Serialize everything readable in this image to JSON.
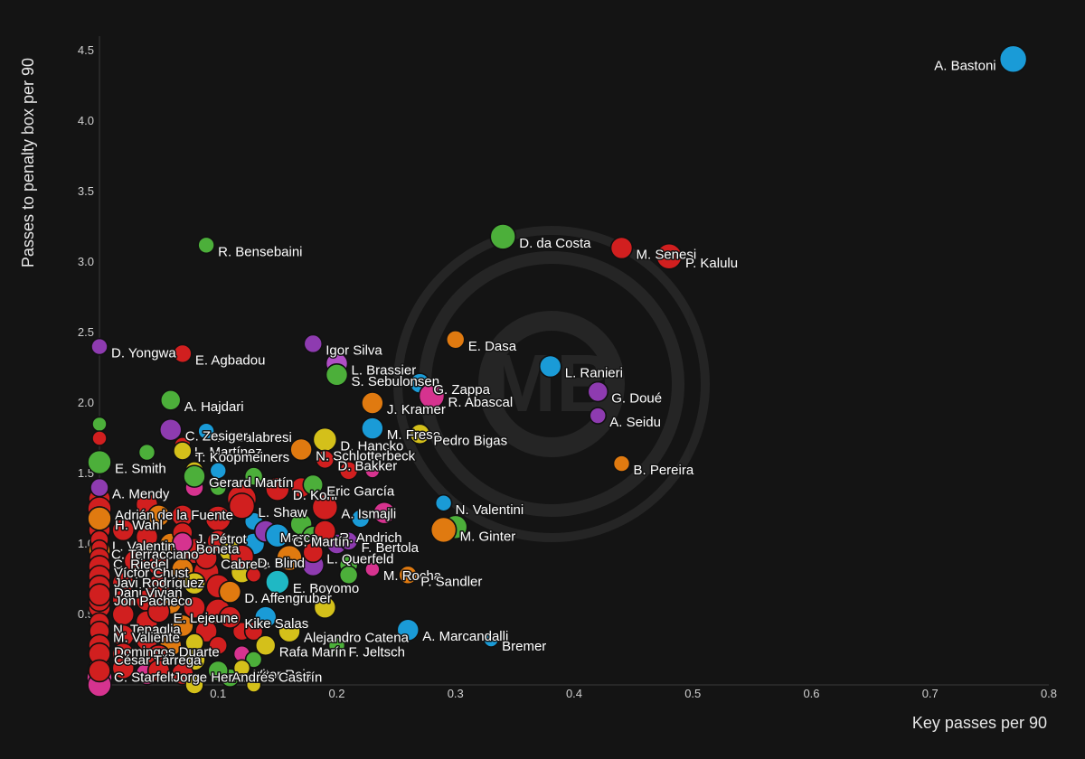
{
  "chart_data": {
    "type": "scatter",
    "xlabel": "Key passes per 90",
    "ylabel": "Passes to penalty box per 90",
    "xlim": [
      0,
      0.8
    ],
    "ylim": [
      0,
      4.5
    ],
    "x_ticks": [
      "0.1",
      "0.2",
      "0.3",
      "0.4",
      "0.5",
      "0.6",
      "0.7",
      "0.8"
    ],
    "y_ticks": [
      "0.5",
      "1.0",
      "1.5",
      "2.0",
      "2.5",
      "3.0",
      "3.5",
      "4.0",
      "4.5"
    ],
    "watermark": "MB",
    "grid": false,
    "labeled_points": [
      {
        "label": "A. Bastoni",
        "x": 0.77,
        "y": 4.44,
        "color": "#1a9bd7",
        "size": 15
      },
      {
        "label": "D. da Costa",
        "x": 0.34,
        "y": 3.18,
        "color": "#4caf3a",
        "size": 14
      },
      {
        "label": "M. Senesi",
        "x": 0.44,
        "y": 3.1,
        "color": "#d11f1f",
        "size": 12
      },
      {
        "label": "P. Kalulu",
        "x": 0.48,
        "y": 3.04,
        "color": "#d11f1f",
        "size": 14
      },
      {
        "label": "R. Bensebaini",
        "x": 0.09,
        "y": 3.12,
        "color": "#4caf3a",
        "size": 9
      },
      {
        "label": "E. Dasa",
        "x": 0.3,
        "y": 2.45,
        "color": "#e07a10",
        "size": 10
      },
      {
        "label": "Igor Silva",
        "x": 0.18,
        "y": 2.42,
        "color": "#8e3bb0",
        "size": 10
      },
      {
        "label": "D. Yongwa",
        "x": 0.0,
        "y": 2.4,
        "color": "#8e3bb0",
        "size": 9
      },
      {
        "label": "E. Agbadou",
        "x": 0.07,
        "y": 2.35,
        "color": "#d11f1f",
        "size": 10
      },
      {
        "label": "L. Brassier",
        "x": 0.2,
        "y": 2.28,
        "color": "#b04fc5",
        "size": 12
      },
      {
        "label": "L. Ranieri",
        "x": 0.38,
        "y": 2.26,
        "color": "#1a9bd7",
        "size": 12
      },
      {
        "label": "S. Sebulonsen",
        "x": 0.2,
        "y": 2.2,
        "color": "#4caf3a",
        "size": 12
      },
      {
        "label": "G. Zappa",
        "x": 0.27,
        "y": 2.14,
        "color": "#1a9bd7",
        "size": 11
      },
      {
        "label": "J. Kramer",
        "x": 0.23,
        "y": 2.0,
        "color": "#e07a10",
        "size": 12
      },
      {
        "label": "A. Hajdari",
        "x": 0.06,
        "y": 2.02,
        "color": "#4caf3a",
        "size": 11
      },
      {
        "label": "G. Doué",
        "x": 0.42,
        "y": 2.08,
        "color": "#8e3bb0",
        "size": 11
      },
      {
        "label": "R. Abascal",
        "x": 0.28,
        "y": 2.05,
        "color": "#d6338f",
        "size": 14
      },
      {
        "label": "A. Seidu",
        "x": 0.42,
        "y": 1.91,
        "color": "#8e3bb0",
        "size": 9
      },
      {
        "label": "A. Calabresi",
        "x": 0.09,
        "y": 1.8,
        "color": "#1a9bd7",
        "size": 9
      },
      {
        "label": "M. Frese",
        "x": 0.23,
        "y": 1.82,
        "color": "#1a9bd7",
        "size": 12
      },
      {
        "label": "C. Zesiger",
        "x": 0.06,
        "y": 1.81,
        "color": "#8e3bb0",
        "size": 12
      },
      {
        "label": "L. Martínez",
        "x": 0.07,
        "y": 1.7,
        "color": "#d11f1f",
        "size": 9
      },
      {
        "label": "Pedro Bigas",
        "x": 0.27,
        "y": 1.78,
        "color": "#d4c01a",
        "size": 11
      },
      {
        "label": "D. Hancko",
        "x": 0.19,
        "y": 1.74,
        "color": "#d4c01a",
        "size": 13
      },
      {
        "label": "N. Schlotterbeck",
        "x": 0.17,
        "y": 1.67,
        "color": "#e07a10",
        "size": 12
      },
      {
        "label": "T. Koopmeiners",
        "x": 0.07,
        "y": 1.66,
        "color": "#d4c01a",
        "size": 10
      },
      {
        "label": "D. Bakker",
        "x": 0.19,
        "y": 1.6,
        "color": "#d11f1f",
        "size": 10
      },
      {
        "label": "B. Pereira",
        "x": 0.44,
        "y": 1.57,
        "color": "#e07a10",
        "size": 9
      },
      {
        "label": "E. Smith",
        "x": 0.0,
        "y": 1.58,
        "color": "#4caf3a",
        "size": 13
      },
      {
        "label": "Gerard Martín",
        "x": 0.08,
        "y": 1.48,
        "color": "#4caf3a",
        "size": 12
      },
      {
        "label": "D. Kohr",
        "x": 0.15,
        "y": 1.39,
        "color": "#d11f1f",
        "size": 13
      },
      {
        "label": "Eric García",
        "x": 0.18,
        "y": 1.42,
        "color": "#4caf3a",
        "size": 11
      },
      {
        "label": "A. Mendy",
        "x": 0.0,
        "y": 1.4,
        "color": "#8e3bb0",
        "size": 10
      },
      {
        "label": "N. Valentini",
        "x": 0.29,
        "y": 1.29,
        "color": "#1a9bd7",
        "size": 9
      },
      {
        "label": "L. Shaw",
        "x": 0.12,
        "y": 1.27,
        "color": "#d11f1f",
        "size": 14
      },
      {
        "label": "A. Ismajli",
        "x": 0.19,
        "y": 1.26,
        "color": "#d11f1f",
        "size": 14
      },
      {
        "label": "Adrián de la Fuente",
        "x": 0.0,
        "y": 1.25,
        "color": "#d11f1f",
        "size": 13
      },
      {
        "label": "H. Wahl",
        "x": 0.0,
        "y": 1.18,
        "color": "#e07a10",
        "size": 13
      },
      {
        "label": "M. Ginter",
        "x": 0.29,
        "y": 1.1,
        "color": "#e07a10",
        "size": 14
      },
      {
        "label": "R. Andrich",
        "x": 0.19,
        "y": 1.09,
        "color": "#d11f1f",
        "size": 12
      },
      {
        "label": "J. Pétrot",
        "x": 0.07,
        "y": 1.08,
        "color": "#d11f1f",
        "size": 11
      },
      {
        "label": "Marco",
        "x": 0.14,
        "y": 1.09,
        "color": "#8e3bb0",
        "size": 12
      },
      {
        "label": "G. Martín",
        "x": 0.15,
        "y": 1.06,
        "color": "#1a9bd7",
        "size": 13
      },
      {
        "label": "L. Valentin",
        "x": 0.0,
        "y": 1.03,
        "color": "#d11f1f",
        "size": 10
      },
      {
        "label": "Boneta",
        "x": 0.07,
        "y": 1.01,
        "color": "#d6338f",
        "size": 11
      },
      {
        "label": "F. Bertola",
        "x": 0.21,
        "y": 1.02,
        "color": "#8e3bb0",
        "size": 10
      },
      {
        "label": "C. Terracciano",
        "x": 0.0,
        "y": 0.97,
        "color": "#d11f1f",
        "size": 9
      },
      {
        "label": "L. Querfeld",
        "x": 0.18,
        "y": 0.94,
        "color": "#d11f1f",
        "size": 11
      },
      {
        "label": "C. Riedel",
        "x": 0.0,
        "y": 0.9,
        "color": "#d11f1f",
        "size": 11
      },
      {
        "label": "Cabrera",
        "x": 0.09,
        "y": 0.9,
        "color": "#d11f1f",
        "size": 12
      },
      {
        "label": "D. Blind",
        "x": 0.12,
        "y": 0.91,
        "color": "#d11f1f",
        "size": 13
      },
      {
        "label": "Víctor Chust",
        "x": 0.0,
        "y": 0.84,
        "color": "#d11f1f",
        "size": 12
      },
      {
        "label": "M. Rocha",
        "x": 0.23,
        "y": 0.82,
        "color": "#d6338f",
        "size": 8
      },
      {
        "label": "P. Sandler",
        "x": 0.26,
        "y": 0.78,
        "color": "#e07a10",
        "size": 10
      },
      {
        "label": "Javi Rodríguez",
        "x": 0.0,
        "y": 0.77,
        "color": "#d11f1f",
        "size": 12
      },
      {
        "label": "Dani Vivian",
        "x": 0.0,
        "y": 0.7,
        "color": "#d11f1f",
        "size": 12
      },
      {
        "label": "E. Boyomo",
        "x": 0.15,
        "y": 0.73,
        "color": "#1fb8c4",
        "size": 13
      },
      {
        "label": "Jon Pacheco",
        "x": 0.0,
        "y": 0.64,
        "color": "#d11f1f",
        "size": 12
      },
      {
        "label": "D. Affengruber",
        "x": 0.11,
        "y": 0.66,
        "color": "#e07a10",
        "size": 12
      },
      {
        "label": "E. Lejeune",
        "x": 0.05,
        "y": 0.52,
        "color": "#d11f1f",
        "size": 12
      },
      {
        "label": "Kike Salas",
        "x": 0.11,
        "y": 0.48,
        "color": "#d11f1f",
        "size": 12
      },
      {
        "label": "N. Tenaglia",
        "x": 0.0,
        "y": 0.44,
        "color": "#d11f1f",
        "size": 11
      },
      {
        "label": "Alejandro Catena",
        "x": 0.16,
        "y": 0.38,
        "color": "#d4c01a",
        "size": 12
      },
      {
        "label": "A. Marcandalli",
        "x": 0.26,
        "y": 0.39,
        "color": "#1a9bd7",
        "size": 12
      },
      {
        "label": "M. Valiente",
        "x": 0.0,
        "y": 0.38,
        "color": "#d11f1f",
        "size": 11
      },
      {
        "label": "F. Jeltsch",
        "x": 0.2,
        "y": 0.28,
        "color": "#4caf3a",
        "size": 9
      },
      {
        "label": "Domingos Duarte",
        "x": 0.0,
        "y": 0.28,
        "color": "#d11f1f",
        "size": 12
      },
      {
        "label": "Rafa Marín",
        "x": 0.14,
        "y": 0.28,
        "color": "#d4c01a",
        "size": 11
      },
      {
        "label": "Bremer",
        "x": 0.33,
        "y": 0.32,
        "color": "#1a9bd7",
        "size": 8
      },
      {
        "label": "César Tárrega",
        "x": 0.0,
        "y": 0.22,
        "color": "#d11f1f",
        "size": 12
      },
      {
        "label": "Vitor Reis",
        "x": 0.12,
        "y": 0.12,
        "color": "#d4c01a",
        "size": 9
      },
      {
        "label": "C. Starfelt",
        "x": 0.0,
        "y": 0.1,
        "color": "#d11f1f",
        "size": 12
      },
      {
        "label": "Jorge Herrando",
        "x": 0.05,
        "y": 0.1,
        "color": "#d11f1f",
        "size": 12
      },
      {
        "label": "Andrés Castrín",
        "x": 0.1,
        "y": 0.1,
        "color": "#4caf3a",
        "size": 11
      }
    ],
    "points": [
      {
        "x": 0.0,
        "y": 1.85,
        "color": "#4caf3a",
        "size": 8
      },
      {
        "x": 0.0,
        "y": 1.75,
        "color": "#d11f1f",
        "size": 8
      },
      {
        "x": 0.04,
        "y": 1.65,
        "color": "#4caf3a",
        "size": 9
      },
      {
        "x": 0.08,
        "y": 1.52,
        "color": "#d4c01a",
        "size": 10
      },
      {
        "x": 0.1,
        "y": 1.52,
        "color": "#1a9bd7",
        "size": 9
      },
      {
        "x": 0.13,
        "y": 1.48,
        "color": "#4caf3a",
        "size": 10
      },
      {
        "x": 0.08,
        "y": 1.4,
        "color": "#d6338f",
        "size": 10
      },
      {
        "x": 0.1,
        "y": 1.4,
        "color": "#4caf3a",
        "size": 9
      },
      {
        "x": 0.12,
        "y": 1.32,
        "color": "#d11f1f",
        "size": 16
      },
      {
        "x": 0.17,
        "y": 1.4,
        "color": "#d11f1f",
        "size": 11
      },
      {
        "x": 0.21,
        "y": 1.52,
        "color": "#d11f1f",
        "size": 10
      },
      {
        "x": 0.23,
        "y": 1.52,
        "color": "#d6338f",
        "size": 8
      },
      {
        "x": 0.24,
        "y": 1.22,
        "color": "#d6338f",
        "size": 12
      },
      {
        "x": 0.22,
        "y": 1.18,
        "color": "#1a9bd7",
        "size": 10
      },
      {
        "x": 0.04,
        "y": 1.28,
        "color": "#d11f1f",
        "size": 12
      },
      {
        "x": 0.05,
        "y": 1.2,
        "color": "#e07a10",
        "size": 12
      },
      {
        "x": 0.07,
        "y": 1.2,
        "color": "#d11f1f",
        "size": 12
      },
      {
        "x": 0.1,
        "y": 1.18,
        "color": "#d11f1f",
        "size": 14
      },
      {
        "x": 0.13,
        "y": 1.16,
        "color": "#1a9bd7",
        "size": 10
      },
      {
        "x": 0.17,
        "y": 1.14,
        "color": "#4caf3a",
        "size": 12
      },
      {
        "x": 0.18,
        "y": 1.05,
        "color": "#4caf3a",
        "size": 12
      },
      {
        "x": 0.2,
        "y": 1.0,
        "color": "#8e3bb0",
        "size": 11
      },
      {
        "x": 0.3,
        "y": 1.12,
        "color": "#4caf3a",
        "size": 13
      },
      {
        "x": 0.02,
        "y": 1.1,
        "color": "#d11f1f",
        "size": 12
      },
      {
        "x": 0.04,
        "y": 1.05,
        "color": "#d11f1f",
        "size": 12
      },
      {
        "x": 0.06,
        "y": 1.0,
        "color": "#e07a10",
        "size": 12
      },
      {
        "x": 0.1,
        "y": 1.02,
        "color": "#d11f1f",
        "size": 12
      },
      {
        "x": 0.13,
        "y": 1.0,
        "color": "#1a9bd7",
        "size": 12
      },
      {
        "x": 0.08,
        "y": 0.95,
        "color": "#d11f1f",
        "size": 14
      },
      {
        "x": 0.11,
        "y": 0.95,
        "color": "#d4c01a",
        "size": 12
      },
      {
        "x": 0.16,
        "y": 0.9,
        "color": "#e07a10",
        "size": 14
      },
      {
        "x": 0.18,
        "y": 0.85,
        "color": "#8e3bb0",
        "size": 12
      },
      {
        "x": 0.21,
        "y": 0.85,
        "color": "#4caf3a",
        "size": 10
      },
      {
        "x": 0.21,
        "y": 0.78,
        "color": "#4caf3a",
        "size": 10
      },
      {
        "x": 0.03,
        "y": 0.88,
        "color": "#d11f1f",
        "size": 12
      },
      {
        "x": 0.05,
        "y": 0.85,
        "color": "#d11f1f",
        "size": 12
      },
      {
        "x": 0.07,
        "y": 0.82,
        "color": "#e07a10",
        "size": 12
      },
      {
        "x": 0.09,
        "y": 0.8,
        "color": "#d11f1f",
        "size": 14
      },
      {
        "x": 0.12,
        "y": 0.8,
        "color": "#d4c01a",
        "size": 12
      },
      {
        "x": 0.13,
        "y": 0.78,
        "color": "#d11f1f",
        "size": 8
      },
      {
        "x": 0.02,
        "y": 0.72,
        "color": "#d11f1f",
        "size": 12
      },
      {
        "x": 0.05,
        "y": 0.7,
        "color": "#d11f1f",
        "size": 13
      },
      {
        "x": 0.08,
        "y": 0.72,
        "color": "#d4c01a",
        "size": 12
      },
      {
        "x": 0.1,
        "y": 0.7,
        "color": "#d11f1f",
        "size": 13
      },
      {
        "x": 0.19,
        "y": 0.55,
        "color": "#d4c01a",
        "size": 12
      },
      {
        "x": 0.02,
        "y": 0.6,
        "color": "#d11f1f",
        "size": 12
      },
      {
        "x": 0.04,
        "y": 0.6,
        "color": "#d11f1f",
        "size": 12
      },
      {
        "x": 0.06,
        "y": 0.58,
        "color": "#e07a10",
        "size": 12
      },
      {
        "x": 0.08,
        "y": 0.55,
        "color": "#d11f1f",
        "size": 12
      },
      {
        "x": 0.1,
        "y": 0.52,
        "color": "#d11f1f",
        "size": 14
      },
      {
        "x": 0.14,
        "y": 0.48,
        "color": "#1a9bd7",
        "size": 12
      },
      {
        "x": 0.02,
        "y": 0.5,
        "color": "#d11f1f",
        "size": 12
      },
      {
        "x": 0.04,
        "y": 0.45,
        "color": "#d11f1f",
        "size": 12
      },
      {
        "x": 0.07,
        "y": 0.42,
        "color": "#e07a10",
        "size": 12
      },
      {
        "x": 0.09,
        "y": 0.38,
        "color": "#d11f1f",
        "size": 12
      },
      {
        "x": 0.12,
        "y": 0.38,
        "color": "#d11f1f",
        "size": 10
      },
      {
        "x": 0.13,
        "y": 0.38,
        "color": "#d11f1f",
        "size": 10
      },
      {
        "x": 0.02,
        "y": 0.35,
        "color": "#d11f1f",
        "size": 12
      },
      {
        "x": 0.04,
        "y": 0.32,
        "color": "#d11f1f",
        "size": 12
      },
      {
        "x": 0.06,
        "y": 0.28,
        "color": "#e07a10",
        "size": 12
      },
      {
        "x": 0.08,
        "y": 0.3,
        "color": "#d4c01a",
        "size": 10
      },
      {
        "x": 0.1,
        "y": 0.28,
        "color": "#d11f1f",
        "size": 10
      },
      {
        "x": 0.12,
        "y": 0.22,
        "color": "#d6338f",
        "size": 9
      },
      {
        "x": 0.02,
        "y": 0.22,
        "color": "#d11f1f",
        "size": 12
      },
      {
        "x": 0.05,
        "y": 0.2,
        "color": "#d11f1f",
        "size": 13
      },
      {
        "x": 0.08,
        "y": 0.18,
        "color": "#d4c01a",
        "size": 12
      },
      {
        "x": 0.13,
        "y": 0.18,
        "color": "#4caf3a",
        "size": 9
      },
      {
        "x": 0.02,
        "y": 0.12,
        "color": "#d11f1f",
        "size": 12
      },
      {
        "x": 0.04,
        "y": 0.08,
        "color": "#d6338f",
        "size": 12
      },
      {
        "x": 0.07,
        "y": 0.08,
        "color": "#d11f1f",
        "size": 12
      },
      {
        "x": 0.11,
        "y": 0.05,
        "color": "#4caf3a",
        "size": 10
      },
      {
        "x": 0.08,
        "y": 0.0,
        "color": "#d4c01a",
        "size": 10
      },
      {
        "x": 0.13,
        "y": 0.0,
        "color": "#d4c01a",
        "size": 8
      },
      {
        "x": 0.0,
        "y": 0.05,
        "color": "#d6338f",
        "size": 14
      },
      {
        "x": 0.0,
        "y": 0.0,
        "color": "#d6338f",
        "size": 13
      },
      {
        "x": 0.0,
        "y": 0.12,
        "color": "#d11f1f",
        "size": 12
      },
      {
        "x": 0.0,
        "y": 0.55,
        "color": "#d11f1f",
        "size": 12
      },
      {
        "x": 0.0,
        "y": 0.6,
        "color": "#d11f1f",
        "size": 12
      },
      {
        "x": 0.0,
        "y": 0.95,
        "color": "#e07a10",
        "size": 12
      },
      {
        "x": 0.0,
        "y": 1.1,
        "color": "#d11f1f",
        "size": 12
      },
      {
        "x": 0.0,
        "y": 1.32,
        "color": "#d11f1f",
        "size": 12
      }
    ]
  }
}
